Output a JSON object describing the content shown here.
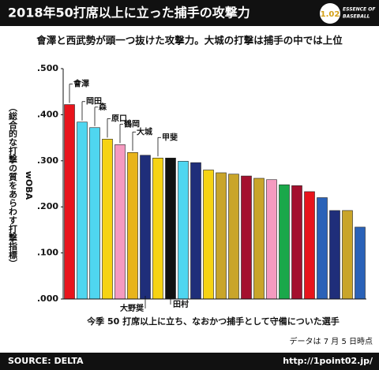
{
  "chart_data": {
    "type": "bar",
    "title": "2018年50打席以上に立った捕手の攻撃力",
    "subtitle": "會澤と西武勢が頭一つ抜けた攻撃力。大城の打撃は捕手の中では上位",
    "logo": {
      "number": "1.02",
      "line1": "ESSENCE OF",
      "line2": "BASEBALL"
    },
    "y_label": "wOBA",
    "y_label_note": "（総合的な打撃の質をあらわす打撃指標）",
    "x_label": "今季 50 打席以上に立ち、なおかつ捕手として守備についた選手",
    "note": "データは 7 月 5 日時点",
    "source": "SOURCE: DELTA",
    "url": "http://1point02.jp/",
    "categories": [
      "會澤",
      "岡田",
      "森",
      "原口",
      "鶴岡",
      "大城",
      "大野奨",
      "甲斐",
      "田村",
      null,
      null,
      null,
      null,
      null,
      null,
      null,
      null,
      null,
      null,
      null,
      null,
      null,
      null,
      null
    ],
    "values": [
      0.422,
      0.384,
      0.372,
      0.347,
      0.335,
      0.318,
      0.312,
      0.306,
      0.306,
      0.299,
      0.296,
      0.28,
      0.274,
      0.271,
      0.267,
      0.262,
      0.259,
      0.248,
      0.246,
      0.233,
      0.22,
      0.192,
      0.192,
      0.156
    ],
    "colors": [
      "#e8141c",
      "#4fd6f0",
      "#4fd6f0",
      "#f6d313",
      "#f59ac0",
      "#e8b41a",
      "#1f2e7a",
      "#f6d313",
      "#111111",
      "#4fd6f0",
      "#1f2e7a",
      "#f6d313",
      "#c9a52a",
      "#c9a52a",
      "#a4102e",
      "#c9a52a",
      "#f59ac0",
      "#1aa84a",
      "#a4102e",
      "#e8141c",
      "#2a62b8",
      "#1f2e7a",
      "#c9a52a",
      "#2a62b8"
    ],
    "ylim": [
      0,
      0.5
    ],
    "yticks": [
      {
        "value": 0,
        "label": ".000"
      },
      {
        "value": 0.1,
        "label": ".100"
      },
      {
        "value": 0.2,
        "label": ".200"
      },
      {
        "value": 0.3,
        "label": ".300"
      },
      {
        "value": 0.4,
        "label": ".400"
      },
      {
        "value": 0.5,
        "label": ".500"
      }
    ]
  }
}
